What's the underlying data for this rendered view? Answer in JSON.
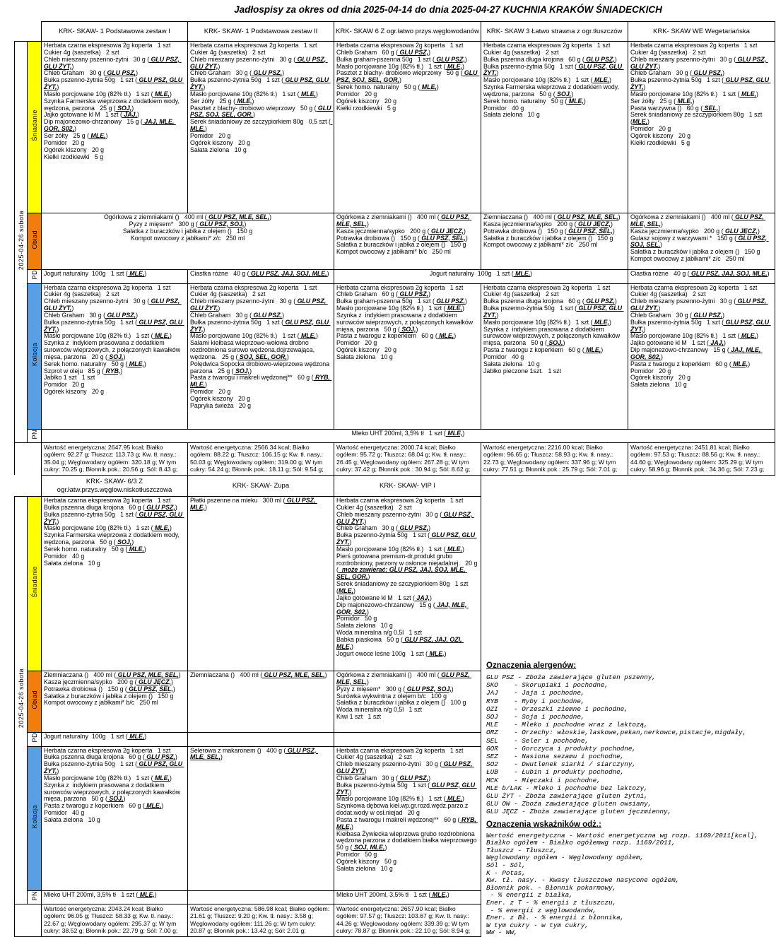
{
  "title": "Jadłospisy  za okres od dnia 2025-04-14 do dnia 2025-04-27 KUCHNIA KRAKÓW ŚNIADECKICH",
  "date_label": "2025-04-26 sobota",
  "meals": {
    "breakfast": "Śniadanie",
    "lunch": "Obiad",
    "pd": "PD",
    "dinner": "Kolacja",
    "pn": "PN"
  },
  "colors": {
    "breakfast": "#FFFF00",
    "lunch": "#F07D0C",
    "dinner": "#58A0E3"
  },
  "table1": {
    "headers": [
      "KRK- SKAW- 1 Podstawowa zestaw I",
      "KRK- SKAW- 1 Podstawowa zestaw II",
      "KRK- SKAW 6 Z ogr.łatwo przys.węglowodanów",
      "KRK- SKAW 3 Łatwo strawna z ogr.tłuszczów",
      "KRK- SKAW WE Wegetariańska"
    ],
    "rows": {
      "breakfast": {
        "cols": [
          [
            "Herbata czarna ekspresowa 2g koperta   1 szt",
            "Cukier 4g (saszetka)   2 szt",
            "Chleb mieszany pszenno-żytni   30 g ( GLU PSZ, GLU ŻYT,)",
            "Chleb Graham   30 g ( GLU PSZ,)",
            "Bułka pszenno-żytnia 50g   1 szt ( GLU PSZ, GLU ŻYT,)",
            "Masło porcjowane 10g (82% tł.)   1 szt ( MLE,)",
            "Szynka Farmerska wieprzowa z dodatkiem wody, wędzona, parzona   25 g ( SOJ,)",
            "Jajko gotowane kl M   1 szt ( JAJ,)",
            "Dip majonezowo-chrzanowy   15 g ( JAJ, MLE, GOR, S02,)",
            "Ser żółty   25 g ( MLE,)",
            "Pomidor   20 g",
            "Ogórek kiszony   20 g",
            "Kiełki rzodkiewki   5 g"
          ],
          [
            "Herbata czarna ekspresowa 2g koperta   1 szt",
            "Cukier 4g (saszetka)   2 szt",
            "Chleb mieszany pszenno-żytni   30 g ( GLU PSZ, GLU ŻYT,)",
            "Chleb Graham   30 g ( GLU PSZ,)",
            "Bułka pszenno-żytnia 50g   1 szt ( GLU PSZ, GLU ŻYT,)",
            "Masło porcjowane 10g (82% tł.)   1 szt ( MLE,)",
            "Ser żółty   25 g ( MLE,)",
            "Pasztet z blachy- drobiowo wieprzowy   50 g ( GLU PSZ, SOJ, SEL, GOR,)",
            "Serek śniadaniowy ze szczypiorkiem 80g   0,5 szt ( MLE,)",
            "Pomidor   20 g",
            "Ogórek kiszony   20 g",
            "Sałata zielona   10 g"
          ],
          [
            "Herbata czarna ekspresowa 2g koperta   1 szt",
            "Chleb Graham   60 g ( GLU PSZ,)",
            "Bułka graham-pszenna 50g   1 szt ( GLU PSZ,)",
            "Masło porcjowane 10g (82% tł.)   1 szt ( MLE,)",
            "Pasztet z blachy- drobiowo wieprzowy   50 g ( GLU PSZ, SOJ, SEL, GOR,)",
            "Serek homo. naturalny   50 g ( MLE,)",
            "Pomidor   20 g",
            "Ogórek kiszony   20 g",
            "Kiełki rzodkiewki   5 g"
          ],
          [
            "Herbata czarna ekspresowa 2g koperta   1 szt",
            "Cukier 4g (saszetka)   2 szt",
            "Bułka pszenna długa krojona   60 g ( GLU PSZ,)",
            "Bułka pszenno-żytnia 50g   1 szt ( GLU PSZ, GLU ŻYT,)",
            "Masło porcjowane 10g (82% tł.)   1 szt ( MLE,)",
            "Szynka Farmerska wieprzowa z dodatkiem wody, wędzona, parzona   50 g ( SOJ,)",
            "Serek homo. naturalny   50 g ( MLE,)",
            "Pomidor   40 g",
            "Sałata zielona   10 g"
          ],
          [
            "Herbata czarna ekspresowa 2g koperta   1 szt",
            "Cukier 4g (saszetka)   2 szt",
            "Chleb mieszany pszenno-żytni   30 g ( GLU PSZ, GLU ŻYT,)",
            "Chleb Graham   30 g ( GLU PSZ,)",
            "Bułka pszenno-żytnia 50g   1 szt ( GLU PSZ, GLU ŻYT,)",
            "Masło porcjowane 10g (82% tł.)   1 szt ( MLE,)",
            "Ser żółty   25 g ( MLE,)",
            "Pasta warzywna ()   60 g ( SEL,)",
            "Serek śniadaniowy ze szczypiorkiem 80g   1 szt (MLE,)",
            "Pomidor   20 g",
            "Ogórek kiszony   20 g",
            "Kiełki rzodkiewki   5 g"
          ]
        ]
      },
      "lunch": {
        "merged_1_2": [
          "Ogórkowa z ziemniakami ()   400 ml ( GLU PSZ, MLE, SEL,)",
          "Pyzy z mięsem*   300 g ( GLU PSZ, SOJ,)",
          "Sałatka z buraczków i jabłka z olejem ()   150 g",
          "Kompot owocowy z jabłkami* z/c   250 ml"
        ],
        "col3": [
          "Ogórkowa z ziemniakami ()   400 ml ( GLU PSZ, MLE, SEL,)",
          "Kasza jęczmienna/sypko   200 g ( GLU JĘCZ,)",
          "Potrawka drobiowa ()   150 g ( GLU PSZ, SEL,)",
          "Sałatka z buraczków i jabłka z olejem ()   150 g",
          "Kompot owocowy z jabłkami* b/c   250 ml"
        ],
        "col4": [
          "Ziemniaczana ()   400 ml ( GLU PSZ, MLE, SEL,)",
          "Kasza jęczmienna/sypko   200 g ( GLU JĘCZ,)",
          "Potrawka drobiowa ()   150 g ( GLU PSZ, SEL,)",
          "Sałatka z buraczków i jabłka z olejem ()   150 g",
          "Kompot owocowy z jabłkami* z/c   250 ml"
        ],
        "col5": [
          "Ogórkowa z ziemniakami ()   400 ml ( GLU PSZ, MLE, SEL,)",
          "Kasza jęczmienna/sypko   200 g ( GLU JĘCZ,)",
          "Gulasz sojowy z warzywami *   150 g ( GLU PSZ, SOJ, SEL,)",
          "Sałatka z buraczków i jabłka z olejem ()   150 g",
          "Kompot owocowy z jabłkami* z/c   250 ml"
        ]
      },
      "pd": {
        "col1": "Jogurt naturalny  100g   1 szt ( MLE,)",
        "col2": "Ciastka różne   40 g ( GLU PSZ, JAJ, SOJ, MLE,)",
        "merged_3_4": "Jogurt naturalny  100g   1 szt ( MLE,)",
        "col5": "Ciastka różne   40 g ( GLU PSZ, JAJ, SOJ, MLE,)"
      },
      "dinner": {
        "cols": [
          [
            "Herbata czarna ekspresowa 2g koperta   1 szt",
            "Cukier 4g (saszetka)   2 szt",
            "Chleb mieszany pszenno-żytni   30 g ( GLU PSZ, GLU ŻYT,)",
            "Chleb Graham   30 g ( GLU PSZ,)",
            "Bułka pszenno-żytnia 50g   1 szt ( GLU PSZ, GLU ŻYT,)",
            "Masło porcjowane 10g (82% tł.)   1 szt ( MLE,)",
            "Szynka z  indykiem prasowana z dodatkiem surowców wieprzowych, z połączonych kawałków mięsa, parzona   20 g ( SOJ,)",
            "Serek homo. naturalny   50 g ( MLE,)",
            "Szprot w oleju   85 g ( RYB,)",
            "Jabłko 1 szt   1 szt",
            "Pomidor   20 g",
            "Ogórek kiszony   20 g"
          ],
          [
            "Herbata czarna ekspresowa 2g koperta   1 szt",
            "Cukier 4g (saszetka)   2 szt",
            "Chleb mieszany pszenno-żytni   30 g ( GLU PSZ, GLU ŻYT,)",
            "Chleb Graham   30 g ( GLU PSZ,)",
            "Bułka pszenno-żytnia 50g   1 szt ( GLU PSZ, GLU ŻYT,)",
            "Masło porcjowane 10g (82% tł.)   1 szt ( MLE,)",
            "Salami kiełbasa wieprzowo-wołowa drobno rozdrobniona surowo wędzona,dojrzewająca, wędzona.   25 g ( SOJ, SEL, GOR,)",
            "Polędwica Sopocka drobiowo-wieprzowa wędzona parzona   25 g ( SOJ,)",
            "Pasta z twarogu i makreli wędzonej**   60 g ( RYB, MLE,)",
            "Pomidor   20 g",
            "Ogórek kiszony   20 g",
            "Papryka świeża   20 g"
          ],
          [
            "Herbata czarna ekspresowa 2g koperta   1 szt",
            "Chleb Graham   60 g ( GLU PSZ,)",
            "Bułka graham-pszenna 50g   1 szt ( GLU PSZ,)",
            "Masło porcjowane 10g (82% tł.)   1 szt ( MLE,)",
            "Szynka z  indykiem prasowana z dodatkiem surowców wieprzowych, z połączonych kawałków mięsa, parzona   50 g ( SOJ,)",
            "Pasta z twarogu z koperkiem   60 g ( MLE,)",
            "Pomidor   20 g",
            "Ogórek kiszony   20 g",
            "Sałata zielona   10 g"
          ],
          [
            "Herbata czarna ekspresowa 2g koperta   1 szt",
            "Cukier 4g (saszetka)   2 szt",
            "Bułka pszenna długa krojona   60 g ( GLU PSZ,)",
            "Bułka pszenno-żytnia 50g   1 szt ( GLU PSZ, GLU ŻYT,)",
            "Masło porcjowane 10g (82% tł.)   1 szt ( MLE,)",
            "Szynka z  indykiem prasowana z dodatkiem surowców wieprzowych, z połączonych kawałków mięsa, parzona   50 g ( SOJ,)",
            "Pasta z twarogu z koperkiem   60 g ( MLE,)",
            "Pomidor   40 g",
            "Sałata zielona   10 g",
            "Jabłko pieczone 1szt.   1 szt"
          ],
          [
            "Herbata czarna ekspresowa 2g koperta   1 szt",
            "Cukier 4g (saszetka)   2 szt",
            "Chleb mieszany pszenno-żytni   30 g ( GLU PSZ, GLU ŻYT,)",
            "Chleb Graham   30 g ( GLU PSZ,)",
            "Bułka pszenno-żytnia 50g   1 szt ( GLU PSZ, GLU ŻYT,)",
            "Masło porcjowane 10g (82% tł.)   1 szt ( MLE,)",
            "Jajko gotowane kl M   1 szt ( JAJ,)",
            "Dip majonezowo-chrzanowy   15 g ( JAJ, MLE, GOR, S02,)",
            "Pasta z twarogu z koperkiem   60 g ( MLE,)",
            "Pomidor   20 g",
            "Ogórek kiszony   20 g",
            "Sałata zielona   10 g"
          ]
        ]
      },
      "pn": {
        "merged_all": "Mleko UHT 200ml, 3,5% tł   1 szt ( MLE,)"
      },
      "summary": [
        "Wartość energetyczna: 2647.95 kcal; Białko ogółem: 92.27 g; Tłuszcz: 113.73 g; Kw. tł. nasy.: 35.04 g; Węglowodany ogółem: 320.18 g; W tym cukry: 70.25 g; Błonnik pok.: 20.56 g; Sól: 8.43 g;",
        "Wartość energetyczna: 2566.34 kcal; Białko ogółem: 88.22 g; Tłuszcz: 106.15 g; Kw. tł. nasy.: 50.03 g; Węglowodany ogółem: 319.00 g; W tym cukry: 54.24 g; Błonnik pok.: 18.11 g; Sól: 9.54 g;",
        "Wartość energetyczna: 2000.74 kcal; Białko ogółem: 95.72 g; Tłuszcz: 68.04 g; Kw. tł. nasy.: 26.45 g; Węglowodany ogółem: 267.28 g; W tym cukry: 37.42 g; Błonnik pok.: 30.94 g; Sól: 8.62 g;",
        "Wartość energetyczna: 2216.00 kcal; Białko ogółem: 96.65 g; Tłuszcz: 58.93 g; Kw. tł. nasy.: 22.73 g; Węglowodany ogółem: 337.96 g; W tym cukry: 77.51 g; Błonnik pok.: 25.79 g; Sól: 7.01 g;",
        "Wartość energetyczna: 2451.81 kcal; Białko ogółem: 97.53 g; Tłuszcz: 88.56 g; Kw. tł. nasy.: 44.60 g; Węglowodany ogółem: 325.29 g; W tym cukry: 58.96 g; Błonnik pok.: 34.36 g; Sól: 7.23 g;"
      ]
    }
  },
  "table2": {
    "headers": [
      "KRK- SKAW- 6/3 Z\nogr.łatw.przys.węglow.niskotłuszczowa",
      "KRK- SKAW- Zupa",
      "KRK- SKAW- VIP I"
    ],
    "rows": {
      "breakfast": {
        "cols": [
          [
            "Herbata czarna ekspresowa 2g koperta   1 szt",
            "Bułka pszenna długa krojona   60 g ( GLU PSZ,)",
            "Bułka pszenno-żytnia 50g   1 szt ( GLU PSZ, GLU ŻYT,)",
            "Masło porcjowane 10g (82% tł.)   1 szt ( MLE,)",
            "Szynka Farmerska wieprzowa z dodatkiem wody, wędzona, parzona   50 g ( SOJ,)",
            "Serek homo. naturalny   50 g ( MLE,)",
            "Pomidor   40 g",
            "Sałata zielona   10 g"
          ],
          [
            "Płatki pszenne na mleku   300 ml ( GLU PSZ, MLE,)"
          ],
          [
            "Herbata czarna ekspresowa 2g koperta   1 szt",
            "Cukier 4g (saszetka)   2 szt",
            "Chleb mieszany pszenno-żytni   30 g ( GLU PSZ, GLU ŻYT,)",
            "Chleb Graham   30 g ( GLU PSZ,)",
            "Bułka pszenno-żytnia 50g   1 szt ( GLU PSZ, GLU ŻYT,)",
            "Masło porcjowane 10g (82% tł.)   1 szt ( MLE,)",
            "Pierś gotowana premium-dr,produkt grubo rozdrobniony, parzony w osłonce niejadalnej.   20 g (  może zawierać: GLU PSZ, JAJ, SOJ, MLE, SEL, GOR,)",
            "Serek śniadaniowy ze szczypiorkiem 80g   1 szt (MLE,)",
            "Jajko gotowane kl M   1 szt ( JAJ,)",
            "Dip majonezowo-chrzanowy   15 g ( JAJ, MLE, GOR, S02,)",
            "Pomidor   50 g",
            "Sałata zielona   10 g",
            "Woda mineralna n/g 0,5l   1 szt",
            "Babka piaskowa   50 g ( GLU PSZ, JAJ, OZI, MLE,)",
            "Jogurt owoce leśne 100g   1 szt ( MLE,)"
          ]
        ]
      },
      "lunch": {
        "cols": [
          [
            "Ziemniaczana ()   400 ml ( GLU PSZ, MLE, SEL,)",
            "Kasza jęczmienna/sypko   200 g ( GLU JĘCZ,)",
            "Potrawka drobiowa ()   150 g ( GLU PSZ, SEL,)",
            "Sałatka z buraczków i jabłka z olejem ()   150 g",
            "Kompot owocowy z jabłkami* b/c   250 ml"
          ],
          [
            "Ziemniaczana ()   400 ml ( GLU PSZ, MLE, SEL,)"
          ],
          [
            "Ogórkowa z ziemniakami ()   400 ml ( GLU PSZ, MLE, SEL,)",
            "Pyzy z mięsem*   300 g ( GLU PSZ, SOJ,)",
            "Surówka wykwintna z olejem b/c   100 g",
            "Sałatka z buraczków i jabłka z olejem ()   100 g",
            "Woda mineralna n/g 0,5l   1 szt",
            "Kiwi 1 szt   1 szt"
          ]
        ]
      },
      "pd": {
        "col1": "Jogurt naturalny  100g   1 szt ( MLE,)",
        "col2": "",
        "col3": ""
      },
      "dinner": {
        "cols": [
          [
            "Herbata czarna ekspresowa 2g koperta   1 szt",
            "Bułka pszenna długa krojona   60 g ( GLU PSZ,)",
            "Bułka pszenno-żytnia 50g   1 szt ( GLU PSZ, GLU ŻYT,)",
            "Masło porcjowane 10g (82% tł.)   1 szt ( MLE,)",
            "Szynka z  indykiem prasowana z dodatkiem surowców wieprzowych, z połączonych kawałków mięsa, parzona   50 g ( SOJ,)",
            "Pasta z twarogu z koperkiem   60 g ( MLE,)",
            "Pomidor   40 g",
            "Sałata zielona   10 g"
          ],
          [
            "Selerowa z makaronem ()   400 g ( GLU PSZ, MLE, SEL,)"
          ],
          [
            "Herbata czarna ekspresowa 2g koperta   1 szt",
            "Cukier 4g (saszetka)   2 szt",
            "Chleb mieszany pszenno-żytni   30 g ( GLU PSZ, GLU ŻYT,)",
            "Chleb Graham   30 g ( GLU PSZ,)",
            "Bułka pszenno-żytnia 50g   1 szt ( GLU PSZ, GLU ŻYT,)",
            "Masło porcjowane 10g (82% tł.)   1 szt ( MLE,)",
            "Szynkowa dębowa kieł.wp.gr.rozd.wędz.parzo.z dodat.wody w osł.niejad   20 g",
            "Pasta z twarogu i makreli wędzonej**   60 g ( RYB, MLE,)",
            "Kiełbasa Żywiecka wieprzowa grubo rozdrobniona wędzona parzona z dodatkiem białka wieprzowego 50 g ( SOJ, MLE,)",
            "Pomidor   50 g",
            "Ogórek kiszony   50 g",
            "Sałata zielona   10 g"
          ]
        ]
      },
      "pn": {
        "col1": "Mleko UHT 200ml, 3,5% tł   1 szt ( MLE,)",
        "col2": "",
        "col3": "Mleko UHT 200ml, 3,5% tł   1 szt ( MLE,)"
      },
      "summary": [
        "Wartość energetyczna: 2043.24 kcal; Białko ogółem: 96.05 g; Tłuszcz: 58.33 g; Kw. tł. nasy.: 22.67 g; Węglowodany ogółem: 295.37 g; W tym cukry: 38.52 g; Błonnik pok.: 22.79 g; Sól: 7.00 g;",
        "Wartość energetyczna: 586.98 kcal; Białko ogółem: 21.61 g; Tłuszcz: 9.20 g; Kw. tł. nasy.: 3.58 g; Węglowodany ogółem: 111.26 g; W tym cukry: 20.87 g; Błonnik pok.: 13.42 g; Sól: 2.01 g;",
        "Wartość energetyczna: 2657.90 kcal; Białko ogółem: 97.57 g; Tłuszcz: 103.67 g; Kw. tł. nasy.: 44.26 g; Węglowodany ogółem: 339.39 g; W tym cukry: 78.87 g; Błonnik pok.: 22.10 g; Sól: 8.94 g;"
      ]
    }
  },
  "legend": {
    "allergens_title": "Oznaczenia alergenów:",
    "allergens": [
      "GLU PSZ - Zboża zawierające gluten pszenny,",
      "SKO    - Skorupiaki i pochodne,",
      "JAJ    - Jaja i pochodne,",
      "RYB    - Ryby i pochodne,",
      "OZI    - Orzeszki ziemne i pochodne,",
      "SOJ    - Soja i pochodne,",
      "MLE    - Mleko i pochodne wraz z laktozą,",
      "ORZ    - Orzechy: włoskie,laskowe,pekan,nerkowce,pistacje,migdały,",
      "SEL    - Seler i pochodne,",
      "GOR    - Gorczyca i produkty pochodne,",
      "SEZ    - Nasiona sezamu i pochodne,",
      "SO2    - Dwutlenek siarki / siarczyny,",
      "ŁUB    - Łubin i produkty pochodne,",
      "MCK    - Mięczaki i pochodne,",
      "MLE b/LAK - Mleko i pochodne bez laktozy,",
      "GLU ŻYT - Zboża zawierające gluten żytni,",
      "GLU OW - Zboża zawierające gluten owsiany,",
      "GLU JĘCZ - Zboża zawierające gluten jęczmienny,"
    ],
    "indicators_title": "Oznaczenia wskaźników odż.:",
    "indicators": [
      "Wartość energetyczna - Wartość energetyczna wg rozp. 1169/2011[kcal],",
      "Białko ogółem - Białko ogółemwg rozp. 1169/2011,",
      "Tłuszcz - Tłuszcz,",
      "Węglowodany ogółem - Węglowodany ogółem,",
      "Sól - Sól,",
      "K - Potas,",
      "Kw. tł. nasy. - Kwasy tłuszczowe nasycone ogółem,",
      "Błonnik pok. - Błonnik pokarmowy,",
      " - % energii z białka,",
      "Ener. z T - % energii z tłuszczu,",
      " - % energii z węglowodanów,",
      "Ener. z Bł. - % energii z błonnika,",
      "W tym cukry - w tym cukry,",
      "WW - WW,"
    ]
  }
}
